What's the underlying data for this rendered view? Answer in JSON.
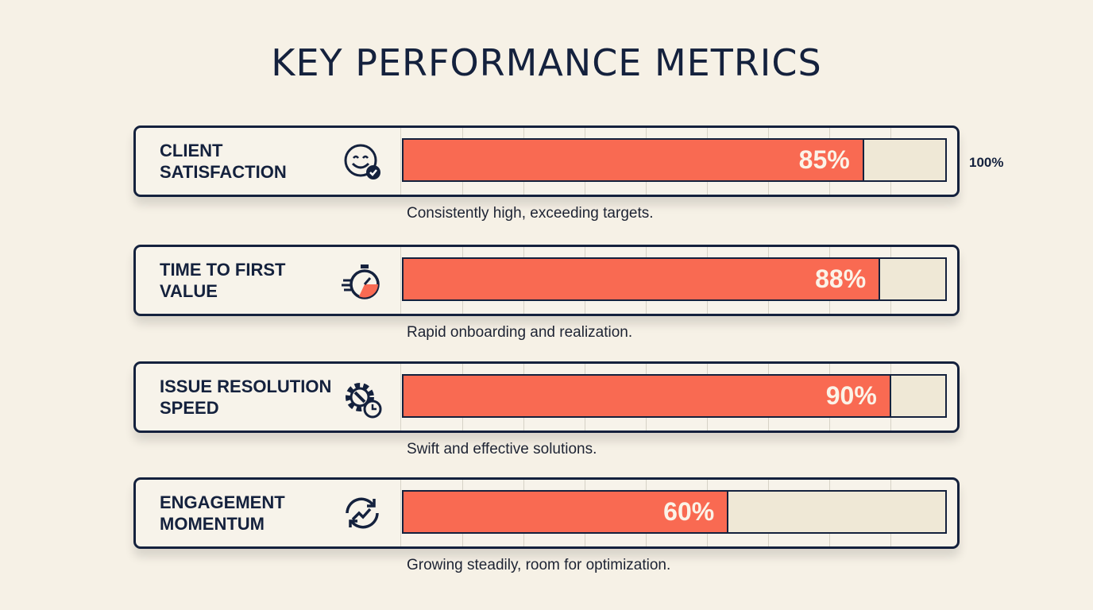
{
  "chart_data": {
    "type": "bar",
    "orientation": "horizontal",
    "title": "KEY PERFORMANCE METRICS",
    "categories": [
      "CLIENT SATISFACTION",
      "TIME TO FIRST VALUE",
      "ISSUE RESOLUTION SPEED",
      "ENGAGEMENT MOMENTUM"
    ],
    "values": [
      85,
      88,
      90,
      60
    ],
    "value_labels": [
      "85%",
      "88%",
      "90%",
      "60%"
    ],
    "descriptions": [
      "Consistently high, exceeding targets.",
      "Rapid onboarding and realization.",
      "Swift and effective solutions.",
      "Growing steadily, room for optimization."
    ],
    "icons": [
      "smiley-check-icon",
      "stopwatch-icon",
      "gear-wrench-clock-icon",
      "refresh-trend-icon"
    ],
    "xlim": [
      0,
      100
    ],
    "max_label": "100%",
    "grid": true,
    "colors": {
      "bar": "#f96a52",
      "outline": "#14213d",
      "track": "#efe8d6",
      "background": "#f6f1e6"
    }
  }
}
